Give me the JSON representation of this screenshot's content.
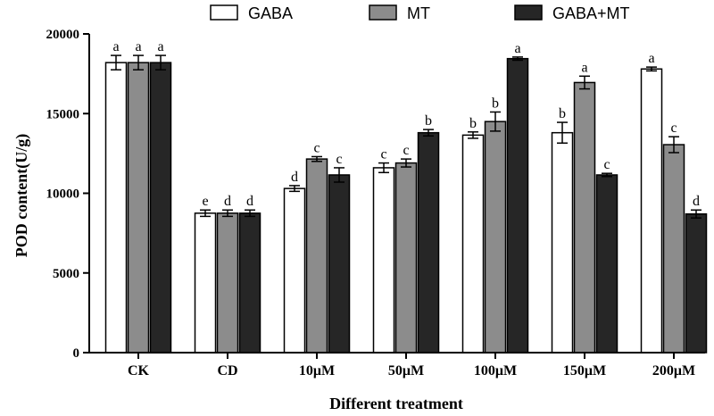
{
  "chart_data": {
    "type": "bar",
    "title": "",
    "xlabel": "Different treatment",
    "ylabel": "POD content(U/g)",
    "ylim": [
      0,
      20000
    ],
    "yticks": [
      0,
      5000,
      10000,
      15000,
      20000
    ],
    "categories": [
      "CK",
      "CD",
      "10μM",
      "50μM",
      "100μM",
      "150μM",
      "200μM"
    ],
    "legend_position": "top",
    "series": [
      {
        "name": "GABA",
        "color": "#ffffff",
        "values": [
          18200,
          8750,
          10300,
          11600,
          13650,
          13800,
          17800
        ],
        "errors": [
          450,
          200,
          180,
          300,
          200,
          650,
          120
        ],
        "letters": [
          "a",
          "e",
          "d",
          "c",
          "b",
          "b",
          "a"
        ]
      },
      {
        "name": "MT",
        "color": "#8c8c8c",
        "values": [
          18200,
          8750,
          12150,
          11900,
          14500,
          16950,
          13050
        ],
        "errors": [
          450,
          200,
          150,
          250,
          600,
          400,
          500
        ],
        "letters": [
          "a",
          "d",
          "c",
          "c",
          "b",
          "a",
          "c"
        ]
      },
      {
        "name": "GABA+MT",
        "color": "#262626",
        "values": [
          18200,
          8750,
          11150,
          13800,
          18450,
          11150,
          8700
        ],
        "errors": [
          450,
          200,
          450,
          200,
          100,
          100,
          250
        ],
        "letters": [
          "a",
          "d",
          "c",
          "b",
          "a",
          "c",
          "d"
        ]
      }
    ]
  }
}
